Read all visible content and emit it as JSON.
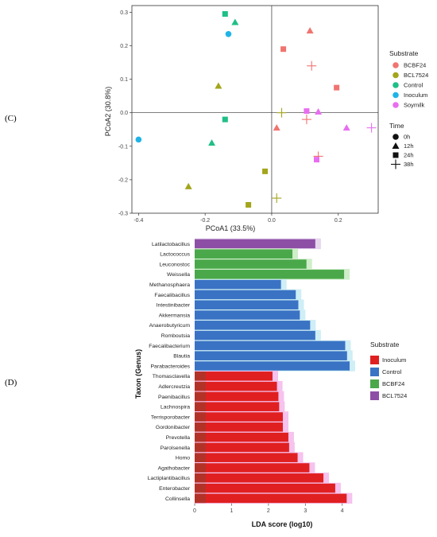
{
  "panel_labels": [
    "(C)",
    "(D)"
  ],
  "chart_data": [
    {
      "type": "scatter",
      "panel": "(C)",
      "xlabel": "PCoA1 (33.5%)",
      "ylabel": "PCoA2 (30.8%)",
      "xlim": [
        -0.42,
        0.32
      ],
      "ylim": [
        -0.3,
        0.32
      ],
      "x_ticks": [
        -0.4,
        -0.2,
        0.0,
        0.2
      ],
      "x_tick_labels": [
        "-0.4",
        "-0.2",
        "0.0",
        "0.2"
      ],
      "y_ticks": [
        -0.3,
        -0.2,
        -0.1,
        0.0,
        0.1,
        0.2,
        0.3
      ],
      "y_tick_labels": [
        "-0.3",
        "-0.2",
        "-0.1",
        "0.0",
        "0.1",
        "0.2",
        "0.3"
      ],
      "grid": false,
      "reference_lines": {
        "x": 0,
        "y": 0
      },
      "legend_substrate": {
        "title": "Substrate",
        "entries": [
          {
            "name": "BCBF24",
            "color": "#f07470"
          },
          {
            "name": "BCL7524",
            "color": "#a3a51c"
          },
          {
            "name": "Control",
            "color": "#1fbf86"
          },
          {
            "name": "Inoculum",
            "color": "#20b4e6"
          },
          {
            "name": "Soymilk",
            "color": "#e86ef0"
          }
        ]
      },
      "legend_time": {
        "title": "Time",
        "entries": [
          {
            "name": "0h",
            "shape": "circle"
          },
          {
            "name": "12h",
            "shape": "triangle"
          },
          {
            "name": "24h",
            "shape": "square"
          },
          {
            "name": "38h",
            "shape": "plus"
          }
        ]
      },
      "points": [
        {
          "x": -0.4,
          "y": -0.08,
          "substrate": "Inoculum",
          "time": "0h"
        },
        {
          "x": -0.13,
          "y": 0.235,
          "substrate": "Inoculum",
          "time": "0h"
        },
        {
          "x": -0.14,
          "y": 0.295,
          "substrate": "Control",
          "time": "24h"
        },
        {
          "x": -0.11,
          "y": 0.27,
          "substrate": "Control",
          "time": "12h"
        },
        {
          "x": -0.14,
          "y": -0.02,
          "substrate": "Control",
          "time": "24h"
        },
        {
          "x": -0.18,
          "y": -0.09,
          "substrate": "Control",
          "time": "12h"
        },
        {
          "x": -0.16,
          "y": 0.08,
          "substrate": "BCL7524",
          "time": "12h"
        },
        {
          "x": -0.25,
          "y": -0.22,
          "substrate": "BCL7524",
          "time": "12h"
        },
        {
          "x": -0.02,
          "y": -0.175,
          "substrate": "BCL7524",
          "time": "24h"
        },
        {
          "x": -0.07,
          "y": -0.275,
          "substrate": "BCL7524",
          "time": "24h"
        },
        {
          "x": 0.015,
          "y": -0.255,
          "substrate": "BCL7524",
          "time": "38h"
        },
        {
          "x": 0.03,
          "y": 0.0,
          "substrate": "BCL7524",
          "time": "38h"
        },
        {
          "x": 0.115,
          "y": 0.245,
          "substrate": "BCBF24",
          "time": "12h"
        },
        {
          "x": 0.035,
          "y": 0.19,
          "substrate": "BCBF24",
          "time": "24h"
        },
        {
          "x": 0.195,
          "y": 0.075,
          "substrate": "BCBF24",
          "time": "24h"
        },
        {
          "x": 0.015,
          "y": -0.045,
          "substrate": "BCBF24",
          "time": "12h"
        },
        {
          "x": 0.12,
          "y": 0.14,
          "substrate": "BCBF24",
          "time": "38h"
        },
        {
          "x": 0.105,
          "y": -0.02,
          "substrate": "BCBF24",
          "time": "38h"
        },
        {
          "x": 0.14,
          "y": -0.13,
          "substrate": "BCBF24",
          "time": "38h"
        },
        {
          "x": 0.105,
          "y": 0.005,
          "substrate": "Soymilk",
          "time": "24h"
        },
        {
          "x": 0.14,
          "y": 0.003,
          "substrate": "Soymilk",
          "time": "12h"
        },
        {
          "x": 0.225,
          "y": -0.045,
          "substrate": "Soymilk",
          "time": "12h"
        },
        {
          "x": 0.3,
          "y": -0.045,
          "substrate": "Soymilk",
          "time": "38h"
        },
        {
          "x": 0.135,
          "y": -0.14,
          "substrate": "Soymilk",
          "time": "24h"
        }
      ]
    },
    {
      "type": "bar",
      "orientation": "horizontal",
      "panel": "(D)",
      "xlabel": "LDA score (log10)",
      "ylabel": "Taxon (Genus)",
      "xlim": [
        0,
        4.35
      ],
      "x_ticks": [
        0,
        1,
        2,
        3,
        4
      ],
      "x_tick_labels": [
        "0",
        "1",
        "2",
        "3",
        "4"
      ],
      "legend": {
        "title": "Substrate",
        "entries": [
          {
            "name": "Inoculum",
            "color": "#e02020"
          },
          {
            "name": "Control",
            "color": "#3a73c4"
          },
          {
            "name": "BCBF24",
            "color": "#4aa84a"
          },
          {
            "name": "BCL7524",
            "color": "#8d4fa6"
          }
        ]
      },
      "categories": [
        "Latilactobacillus",
        "Lactococcus",
        "Leuconostoc",
        "Weissella",
        "Methanosphaera",
        "Faecalibacillus",
        "Intestinibacter",
        "Akkermansia",
        "Anaerobutyricum",
        "Romboutsia",
        "Faecalibacterium",
        "Blautia",
        "Parabacteroides",
        "Thomasclavella",
        "Adlercreutzia",
        "Paenibacillus",
        "Lachnospira",
        "Terrisporobacter",
        "Gordonibacter",
        "Prevotella",
        "Parolsenella",
        "Homo",
        "Agathobacter",
        "Lactiplantibacillus",
        "Enterobacter",
        "Collinsella"
      ],
      "values": [
        3.27,
        2.65,
        3.03,
        4.05,
        2.34,
        2.74,
        2.81,
        2.85,
        3.13,
        3.27,
        4.08,
        4.13,
        4.2,
        2.11,
        2.23,
        2.27,
        2.29,
        2.39,
        2.39,
        2.54,
        2.56,
        2.79,
        3.11,
        3.49,
        3.81,
        4.12
      ],
      "groups": [
        "BCL7524",
        "BCBF24",
        "BCBF24",
        "BCBF24",
        "Control",
        "Control",
        "Control",
        "Control",
        "Control",
        "Control",
        "Control",
        "Control",
        "Control",
        "Inoculum",
        "Inoculum",
        "Inoculum",
        "Inoculum",
        "Inoculum",
        "Inoculum",
        "Inoculum",
        "Inoculum",
        "Inoculum",
        "Inoculum",
        "Inoculum",
        "Inoculum",
        "Inoculum"
      ]
    }
  ]
}
